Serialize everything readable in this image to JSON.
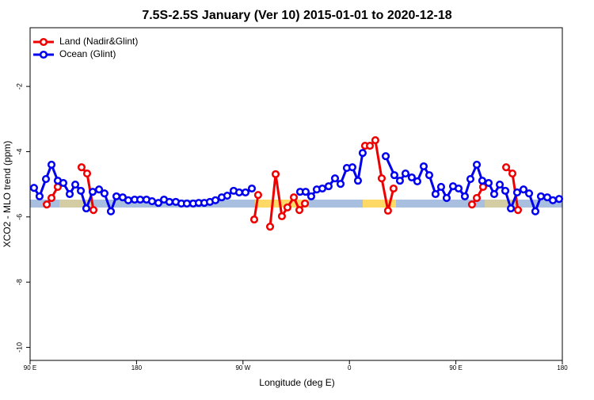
{
  "chart_data": {
    "type": "line",
    "title": "7.5S-2.5S January (Ver 10)   2015-01-01 to 2020-12-18",
    "x_label": "Longitude (deg E)",
    "y_label": "XCO2 - MLO trend (ppm)",
    "xlim": [
      90,
      540
    ],
    "xticks": [
      {
        "value": 90,
        "label": "90 E"
      },
      180,
      {
        "value": 270,
        "label": "90 W"
      },
      {
        "value": 360,
        "label": "0"
      },
      {
        "value": 450,
        "label": "90 E"
      },
      180.0001
    ],
    "ylim": [
      -10.4,
      -0.2
    ],
    "yticks": [
      -2,
      -4,
      -6,
      -8,
      -10
    ],
    "legend": "top-left",
    "series": [
      {
        "name": "Land (Nadir&Glint)",
        "color": "#ee0000",
        "x": [
          104.1,
          108.1,
          113.4,
          120,
          133.5,
          138.2,
          143.6,
          200,
          279.5,
          282.8,
          285,
          292.9,
          297.6,
          302.9,
          307.6,
          313.0,
          317.7,
          322.4,
          340,
          373.2,
          377.3,
          381.9,
          387.3,
          392.6,
          397.3,
          420,
          463.6,
          467.7,
          473.0,
          480,
          492.5,
          497.8,
          502.5
        ],
        "values": [
          -5.62,
          -5.42,
          -5.08,
          null,
          -4.48,
          -4.67,
          -5.79,
          null,
          -6.08,
          -5.33,
          null,
          -6.3,
          -4.69,
          -5.98,
          -5.71,
          -5.4,
          -5.79,
          -5.59,
          null,
          -3.82,
          -3.82,
          -3.65,
          -4.82,
          -5.81,
          -5.13,
          null,
          -5.62,
          -5.42,
          -5.08,
          null,
          -4.48,
          -4.67,
          -5.79
        ]
      },
      {
        "name": "Ocean (Glint)",
        "color": "#0000ee",
        "x": [
          93.3,
          98.0,
          103.4,
          108.1,
          113.4,
          118.1,
          123.5,
          128.2,
          132.9,
          137.5,
          142.9,
          148.3,
          152.9,
          158.3,
          163.0,
          168.3,
          173.0,
          178.4,
          183.1,
          188.4,
          193.1,
          198.5,
          203.2,
          207.8,
          213.2,
          217.9,
          222.6,
          227.9,
          232.6,
          237.3,
          242.0,
          246.7,
          252.0,
          256.7,
          262.1,
          266.8,
          272.1,
          277.5,
          300,
          318.3,
          323.0,
          327.7,
          332.4,
          337.1,
          342.4,
          347.8,
          352.5,
          357.8,
          362.5,
          367.2,
          371.2,
          380,
          390.7,
          398.0,
          402.7,
          407.4,
          412.7,
          417.4,
          422.8,
          427.5,
          432.8,
          437.5,
          442.2,
          447.6,
          452.3,
          457.6,
          462.3,
          467.7,
          472.3,
          477.7,
          482.4,
          487.1,
          491.8,
          496.5,
          501.8,
          507.2,
          511.9,
          517.2,
          521.9,
          527.3,
          532.0,
          537.3
        ],
        "values": [
          -5.11,
          -5.37,
          -4.84,
          -4.4,
          -4.89,
          -4.96,
          -5.3,
          -5.01,
          -5.2,
          -5.74,
          -5.23,
          -5.16,
          -5.28,
          -5.83,
          -5.37,
          -5.4,
          -5.49,
          -5.47,
          -5.47,
          -5.47,
          -5.52,
          -5.57,
          -5.47,
          -5.54,
          -5.54,
          -5.59,
          -5.59,
          -5.59,
          -5.57,
          -5.57,
          -5.54,
          -5.49,
          -5.4,
          -5.35,
          -5.2,
          -5.25,
          -5.25,
          -5.13,
          null,
          -5.23,
          -5.23,
          -5.37,
          -5.16,
          -5.13,
          -5.06,
          -4.82,
          -4.99,
          -4.5,
          -4.48,
          -4.89,
          -4.04,
          null,
          -4.14,
          -4.72,
          -4.89,
          -4.67,
          -4.79,
          -4.91,
          -4.45,
          -4.72,
          -5.3,
          -5.08,
          -5.42,
          -5.06,
          -5.13,
          -5.37,
          -4.84,
          -4.4,
          -4.89,
          -4.96,
          -5.3,
          -5.01,
          -5.2,
          -5.74,
          -5.25,
          -5.16,
          -5.28,
          -5.83,
          -5.37,
          -5.4,
          -5.49,
          -5.45
        ]
      }
    ]
  }
}
